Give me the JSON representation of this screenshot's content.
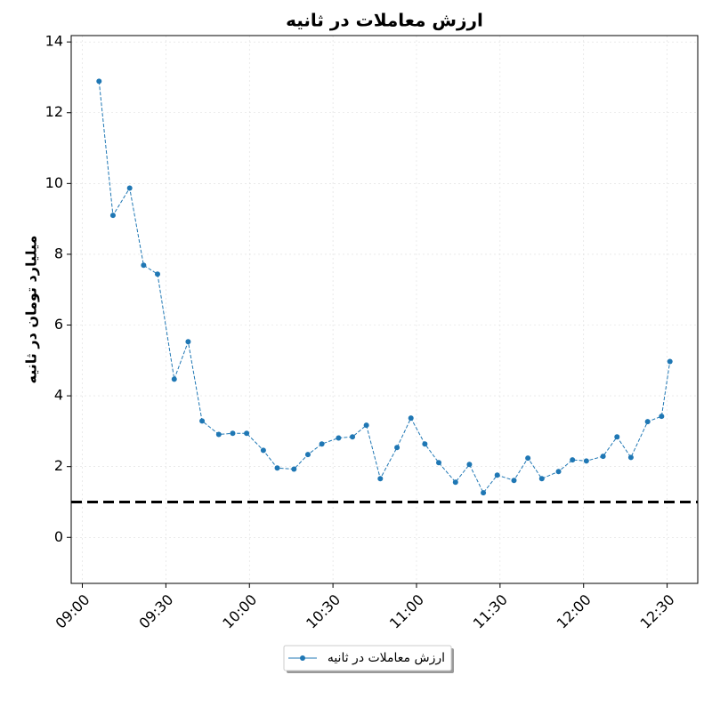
{
  "chart_data": {
    "type": "line",
    "title": "ارزش معاملات در ثانیه",
    "y_label": "میلیارد تومان در ثانیه",
    "x": [
      "09:06",
      "09:11",
      "09:17",
      "09:22",
      "09:27",
      "09:33",
      "09:38",
      "09:43",
      "09:49",
      "09:54",
      "09:59",
      "10:05",
      "10:10",
      "10:16",
      "10:21",
      "10:26",
      "10:32",
      "10:37",
      "10:42",
      "10:47",
      "10:53",
      "10:58",
      "11:03",
      "11:08",
      "11:14",
      "11:19",
      "11:24",
      "11:29",
      "11:35",
      "11:40",
      "11:45",
      "11:51",
      "11:56",
      "12:01",
      "12:07",
      "12:12",
      "12:17",
      "12:23",
      "12:28",
      "12:31"
    ],
    "series": [
      {
        "name": "ارزش معاملات در ثانیه",
        "color": "#1f77b4",
        "values": [
          12.89,
          9.1,
          9.87,
          7.69,
          7.44,
          4.47,
          5.53,
          3.29,
          2.91,
          2.94,
          2.94,
          2.46,
          1.96,
          1.93,
          2.34,
          2.64,
          2.81,
          2.84,
          3.17,
          1.66,
          2.54,
          3.37,
          2.64,
          2.11,
          1.56,
          2.06,
          1.26,
          1.76,
          1.61,
          2.24,
          1.66,
          1.86,
          2.19,
          2.16,
          2.29,
          2.84,
          2.26,
          3.27,
          3.42,
          4.97
        ]
      }
    ],
    "hline": {
      "value": 1,
      "color": "#000000"
    },
    "xlim": [
      "08:56",
      "12:41"
    ],
    "xticks": [
      "09:00",
      "09:30",
      "10:00",
      "10:30",
      "11:00",
      "11:30",
      "12:00",
      "12:30"
    ],
    "ylim": [
      -1.3,
      14.18
    ],
    "yticks": [
      0,
      2,
      4,
      6,
      8,
      10,
      12,
      14
    ],
    "grid": true,
    "legend": "lower center",
    "title_color": "#0000cc"
  }
}
